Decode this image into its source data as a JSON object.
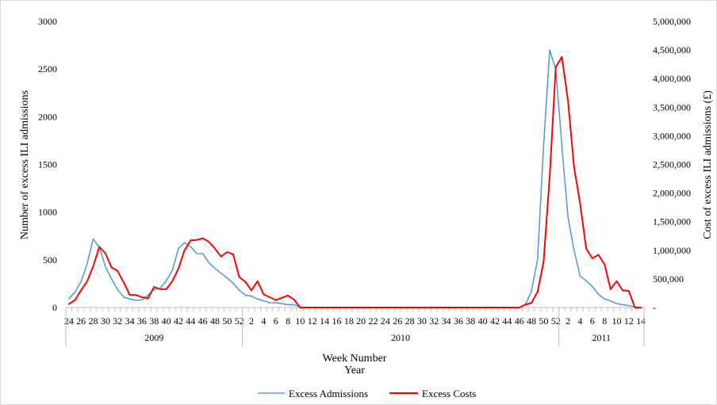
{
  "chart_data": {
    "type": "line",
    "title": "",
    "xlabel": "Week Number",
    "xlabel2": "Year",
    "ylabel_left": "Number of excess ILI admissions",
    "ylabel_right": "Cost of excess ILI admissions (£)",
    "ylim_left": [
      0,
      3000
    ],
    "ylim_right": [
      0,
      5000000
    ],
    "yticks_left": [
      "0",
      "500",
      "1000",
      "1500",
      "2000",
      "2500",
      "3000"
    ],
    "yticks_right": [
      "-",
      "500,000",
      "1,000,000",
      "1,500,000",
      "2,000,000",
      "2,500,000",
      "3,000,000",
      "3,500,000",
      "4,000,000",
      "4,500,000",
      "5,000,000"
    ],
    "grid": false,
    "legend_position": "bottom",
    "weeks": [
      "24",
      "25",
      "26",
      "27",
      "28",
      "29",
      "30",
      "31",
      "32",
      "33",
      "34",
      "35",
      "36",
      "37",
      "38",
      "39",
      "40",
      "41",
      "42",
      "43",
      "44",
      "45",
      "46",
      "47",
      "48",
      "49",
      "50",
      "51",
      "52",
      "1",
      "2",
      "3",
      "4",
      "5",
      "6",
      "7",
      "8",
      "9",
      "10",
      "11",
      "12",
      "13",
      "14",
      "15",
      "16",
      "17",
      "18",
      "19",
      "20",
      "21",
      "22",
      "23",
      "24",
      "25",
      "26",
      "27",
      "28",
      "29",
      "30",
      "31",
      "32",
      "33",
      "34",
      "35",
      "36",
      "37",
      "38",
      "39",
      "40",
      "41",
      "42",
      "43",
      "44",
      "45",
      "46",
      "47",
      "48",
      "49",
      "50",
      "51",
      "52",
      "1",
      "2",
      "3",
      "4",
      "5",
      "6",
      "7",
      "8",
      "9",
      "10",
      "11",
      "12",
      "13",
      "14"
    ],
    "week_labels": [
      "24",
      "",
      "26",
      "",
      "28",
      "",
      "30",
      "",
      "32",
      "",
      "34",
      "",
      "36",
      "",
      "38",
      "",
      "40",
      "",
      "42",
      "",
      "44",
      "",
      "46",
      "",
      "48",
      "",
      "50",
      "",
      "52",
      "",
      "2",
      "",
      "4",
      "",
      "6",
      "",
      "8",
      "",
      "10",
      "",
      "12",
      "",
      "14",
      "",
      "16",
      "",
      "18",
      "",
      "20",
      "",
      "22",
      "",
      "24",
      "",
      "26",
      "",
      "28",
      "",
      "30",
      "",
      "32",
      "",
      "34",
      "",
      "36",
      "",
      "38",
      "",
      "40",
      "",
      "42",
      "",
      "44",
      "",
      "46",
      "",
      "48",
      "",
      "50",
      "",
      "52",
      "",
      "2",
      "",
      "4",
      "",
      "6",
      "",
      "8",
      "",
      "10",
      "",
      "12",
      "",
      "14"
    ],
    "years": [
      {
        "label": "2009",
        "start": 0,
        "end": 29
      },
      {
        "label": "2010",
        "start": 29,
        "end": 81
      },
      {
        "label": "2011",
        "start": 81,
        "end": 95
      }
    ],
    "series": [
      {
        "name": "Excess Admissions",
        "axis": "left",
        "color": "#5b9bd5",
        "values": [
          90,
          160,
          270,
          460,
          720,
          630,
          430,
          300,
          190,
          110,
          90,
          75,
          80,
          130,
          190,
          200,
          280,
          390,
          620,
          680,
          640,
          565,
          565,
          470,
          410,
          360,
          310,
          255,
          180,
          130,
          120,
          90,
          70,
          50,
          50,
          40,
          30,
          30,
          5,
          0,
          0,
          0,
          0,
          0,
          0,
          0,
          0,
          0,
          0,
          0,
          0,
          0,
          0,
          0,
          0,
          0,
          0,
          0,
          0,
          0,
          0,
          0,
          0,
          0,
          0,
          0,
          0,
          0,
          0,
          0,
          0,
          0,
          0,
          0,
          0,
          30,
          170,
          500,
          1700,
          2700,
          2500,
          1700,
          950,
          600,
          330,
          280,
          220,
          140,
          90,
          70,
          40,
          30,
          20,
          5,
          0
        ]
      },
      {
        "name": "Excess Costs",
        "axis": "right",
        "color": "#ff0000",
        "values": [
          60000,
          130000,
          300000,
          460000,
          720000,
          1060000,
          950000,
          700000,
          640000,
          440000,
          220000,
          220000,
          180000,
          160000,
          360000,
          320000,
          320000,
          460000,
          680000,
          1000000,
          1170000,
          1180000,
          1210000,
          1150000,
          1030000,
          890000,
          970000,
          930000,
          530000,
          450000,
          300000,
          460000,
          230000,
          180000,
          130000,
          170000,
          210000,
          140000,
          0,
          0,
          0,
          0,
          0,
          0,
          0,
          0,
          0,
          0,
          0,
          0,
          0,
          0,
          0,
          0,
          0,
          0,
          0,
          0,
          0,
          0,
          0,
          0,
          0,
          0,
          0,
          0,
          0,
          0,
          0,
          0,
          0,
          0,
          0,
          0,
          0,
          50000,
          80000,
          270000,
          800000,
          2300000,
          4200000,
          4380000,
          3620000,
          2450000,
          1820000,
          1030000,
          860000,
          920000,
          760000,
          320000,
          460000,
          300000,
          290000,
          0,
          0
        ]
      }
    ]
  }
}
